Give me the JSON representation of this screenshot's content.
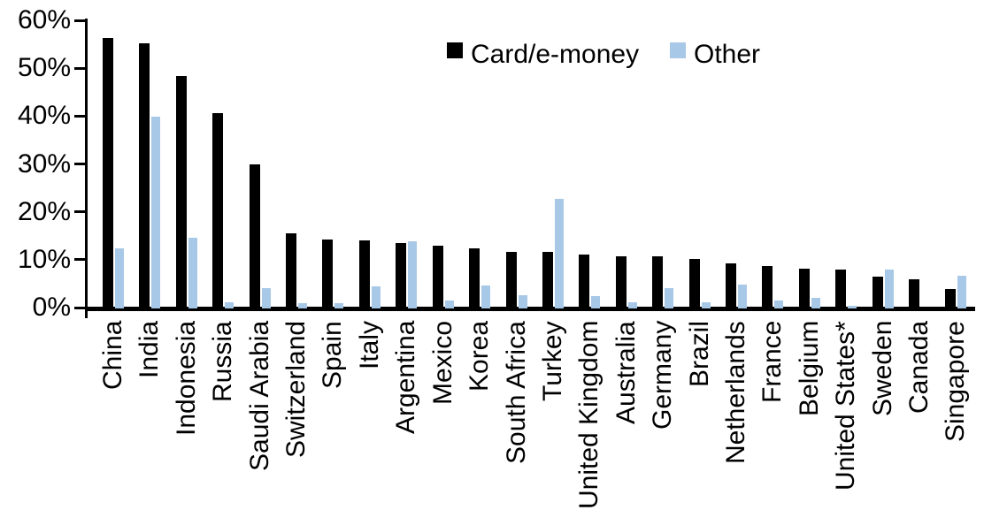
{
  "chart_data": {
    "type": "bar",
    "title": "",
    "xlabel": "",
    "ylabel": "",
    "ylim": [
      0,
      60
    ],
    "y_tick_labels": [
      "0%",
      "10%",
      "20%",
      "30%",
      "40%",
      "50%",
      "60%"
    ],
    "y_tick_values": [
      0,
      10,
      20,
      30,
      40,
      50,
      60
    ],
    "grid": false,
    "legend_position": "top-center",
    "categories": [
      "China",
      "India",
      "Indonesia",
      "Russia",
      "Saudi Arabia",
      "Switzerland",
      "Spain",
      "Italy",
      "Argentina",
      "Mexico",
      "Korea",
      "South Africa",
      "Turkey",
      "United Kingdom",
      "Australia",
      "Germany",
      "Brazil",
      "Netherlands",
      "France",
      "Belgium",
      "United States*",
      "Sweden",
      "Canada",
      "Singapore"
    ],
    "series": [
      {
        "name": "Card/e-money",
        "color": "#000000",
        "values": [
          56.4,
          55.2,
          48.4,
          40.6,
          29.9,
          15.6,
          14.2,
          14.1,
          13.4,
          13.0,
          12.3,
          11.7,
          11.6,
          11.0,
          10.8,
          10.7,
          10.1,
          9.3,
          8.6,
          8.1,
          7.9,
          6.5,
          6.0,
          3.9
        ]
      },
      {
        "name": "Other",
        "color": "#A8C8E8",
        "values": [
          12.3,
          39.8,
          14.6,
          1.1,
          4.0,
          0.9,
          1.0,
          4.5,
          13.9,
          1.4,
          4.6,
          2.5,
          22.7,
          2.4,
          1.1,
          4.0,
          1.2,
          4.8,
          1.5,
          2.0,
          0.4,
          8.0,
          0.0,
          6.7
        ]
      }
    ]
  }
}
